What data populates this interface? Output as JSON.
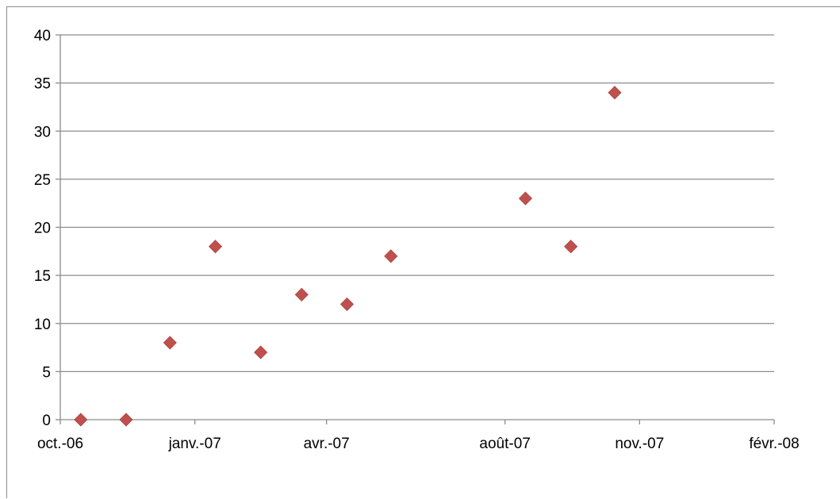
{
  "chart_data": {
    "type": "scatter",
    "title": "",
    "xlabel": "",
    "ylabel": "",
    "x_axis": {
      "kind": "date",
      "min": "2006-10-01",
      "max": "2008-02-01",
      "major_unit_months": 3,
      "ticks": [
        "2006-10-01",
        "2007-01-01",
        "2007-04-01",
        "2007-08-01",
        "2007-11-01",
        "2008-02-01"
      ],
      "tick_labels": [
        "oct.-06",
        "janv.-07",
        "avr.-07",
        "août-07",
        "nov.-07",
        "févr.-08"
      ]
    },
    "y_axis": {
      "min": 0,
      "max": 40,
      "step": 5,
      "tick_labels": [
        "0",
        "5",
        "10",
        "15",
        "20",
        "25",
        "30",
        "35",
        "40"
      ]
    },
    "grid": {
      "horizontal": true,
      "vertical": false
    },
    "legend": "none",
    "marker": {
      "shape": "diamond",
      "color": "#c0504d"
    },
    "series": [
      {
        "points": [
          {
            "x": "2006-10-15",
            "y": 0
          },
          {
            "x": "2006-11-15",
            "y": 0
          },
          {
            "x": "2006-12-15",
            "y": 8
          },
          {
            "x": "2007-01-15",
            "y": 18
          },
          {
            "x": "2007-02-15",
            "y": 7
          },
          {
            "x": "2007-03-15",
            "y": 13
          },
          {
            "x": "2007-04-15",
            "y": 12
          },
          {
            "x": "2007-05-15",
            "y": 17
          },
          {
            "x": "2007-08-15",
            "y": 23
          },
          {
            "x": "2007-09-15",
            "y": 18
          },
          {
            "x": "2007-10-15",
            "y": 34
          }
        ]
      }
    ]
  }
}
